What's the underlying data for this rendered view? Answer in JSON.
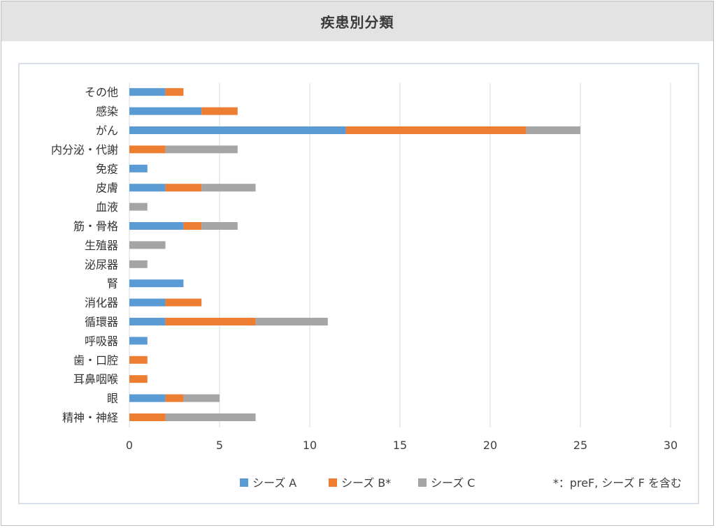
{
  "header": {
    "title": "疾患別分類"
  },
  "chart_data": {
    "type": "bar",
    "orientation": "horizontal",
    "stacked": true,
    "title": "疾患別分類",
    "categories": [
      "その他",
      "感染",
      "がん",
      "内分泌・代謝",
      "免疫",
      "皮膚",
      "血液",
      "筋・骨格",
      "生殖器",
      "泌尿器",
      "腎",
      "消化器",
      "循環器",
      "呼吸器",
      "歯・口腔",
      "耳鼻咽喉",
      "眼",
      "精神・神経"
    ],
    "series": [
      {
        "name": "シーズ A",
        "color": "#5b9bd5",
        "values": [
          2,
          4,
          12,
          0,
          1,
          2,
          0,
          3,
          0,
          0,
          3,
          2,
          2,
          1,
          0,
          0,
          2,
          0
        ]
      },
      {
        "name": "シーズ B*",
        "color": "#ed7d31",
        "values": [
          1,
          2,
          10,
          2,
          0,
          2,
          0,
          1,
          0,
          0,
          0,
          2,
          5,
          0,
          1,
          1,
          1,
          2
        ]
      },
      {
        "name": "シーズ C",
        "color": "#a5a5a5",
        "values": [
          0,
          0,
          3,
          4,
          0,
          3,
          1,
          2,
          2,
          1,
          0,
          0,
          4,
          0,
          0,
          0,
          2,
          5
        ]
      }
    ],
    "xlim": [
      0,
      30
    ],
    "xticks": [
      0,
      5,
      10,
      15,
      20,
      25,
      30
    ],
    "grid": true,
    "legend": "bottom",
    "note": "*：preF, シーズ F を含む"
  }
}
